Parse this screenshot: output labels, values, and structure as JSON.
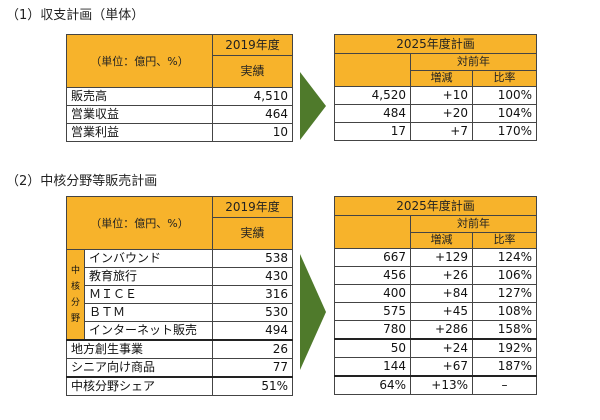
{
  "section1": {
    "title": "（1）収支計画（単体）",
    "left": {
      "unit": "（単位：億円、%）",
      "year_header": "2019年度",
      "result_header": "実績",
      "rows": [
        {
          "label": "販売高",
          "value": "4,510"
        },
        {
          "label": "営業収益",
          "value": "464"
        },
        {
          "label": "営業利益",
          "value": "10"
        }
      ]
    },
    "right": {
      "plan_header": "2025年度計画",
      "yoy_header": "対前年",
      "diff_header": "増減",
      "ratio_header": "比率",
      "rows": [
        {
          "plan": "4,520",
          "diff": "+10",
          "ratio": "100%"
        },
        {
          "plan": "484",
          "diff": "+20",
          "ratio": "104%"
        },
        {
          "plan": "17",
          "diff": "+7",
          "ratio": "170%"
        }
      ]
    }
  },
  "section2": {
    "title": "（2）中核分野等販売計画",
    "left": {
      "unit": "（単位：億円、%）",
      "year_header": "2019年度",
      "result_header": "実績",
      "side_label": "中核分野",
      "core_rows": [
        {
          "label": "インバウンド",
          "value": "538"
        },
        {
          "label": "教育旅行",
          "value": "430"
        },
        {
          "label": "ＭＩＣＥ",
          "value": "316"
        },
        {
          "label": "ＢＴＭ",
          "value": "530"
        },
        {
          "label": "インターネット販売",
          "value": "494"
        }
      ],
      "other_rows": [
        {
          "label": "地方創生事業",
          "value": "26"
        },
        {
          "label": "シニア向け商品",
          "value": "77"
        }
      ],
      "share_row": {
        "label": "中核分野シェア",
        "value": "51%"
      }
    },
    "right": {
      "plan_header": "2025年度計画",
      "yoy_header": "対前年",
      "diff_header": "増減",
      "ratio_header": "比率",
      "core_rows": [
        {
          "plan": "667",
          "diff": "+129",
          "ratio": "124%"
        },
        {
          "plan": "456",
          "diff": "+26",
          "ratio": "106%"
        },
        {
          "plan": "400",
          "diff": "+84",
          "ratio": "127%"
        },
        {
          "plan": "575",
          "diff": "+45",
          "ratio": "108%"
        },
        {
          "plan": "780",
          "diff": "+286",
          "ratio": "158%"
        }
      ],
      "other_rows": [
        {
          "plan": "50",
          "diff": "+24",
          "ratio": "192%"
        },
        {
          "plan": "144",
          "diff": "+67",
          "ratio": "187%"
        }
      ],
      "share_row": {
        "plan": "64%",
        "diff": "+13%",
        "ratio": "–"
      }
    }
  },
  "colors": {
    "header_fill": "#f7b32b",
    "arrow": "#4f7a2b"
  }
}
